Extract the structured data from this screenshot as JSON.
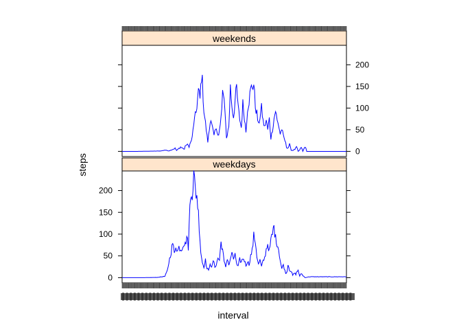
{
  "chart_data": {
    "type": "line",
    "layout": "lattice-stacked-panels",
    "xlabel": "interval",
    "ylabel": "steps",
    "ylim": [
      -12,
      245
    ],
    "y_ticks": [
      0,
      50,
      100,
      150,
      200
    ],
    "x_range": [
      0,
      288
    ],
    "x_ticks_note": "x tick labels are overplotted and illegible",
    "strip_color": "#ffe5cc",
    "line_color": "#0000ff",
    "panels": [
      {
        "name": "weekends",
        "position": "top",
        "y_axis_side": "right",
        "values_anchor": [
          [
            0,
            0
          ],
          [
            20,
            0
          ],
          [
            40,
            0.5
          ],
          [
            50,
            1
          ],
          [
            55,
            3
          ],
          [
            60,
            1
          ],
          [
            64,
            4
          ],
          [
            68,
            7
          ],
          [
            70,
            2
          ],
          [
            75,
            10
          ],
          [
            80,
            5
          ],
          [
            82,
            16
          ],
          [
            86,
            12
          ],
          [
            88,
            20
          ],
          [
            90,
            32
          ],
          [
            92,
            65
          ],
          [
            95,
            90
          ],
          [
            98,
            140
          ],
          [
            100,
            120
          ],
          [
            102,
            178
          ],
          [
            103,
            160
          ],
          [
            105,
            95
          ],
          [
            108,
            50
          ],
          [
            110,
            22
          ],
          [
            112,
            50
          ],
          [
            114,
            80
          ],
          [
            116,
            55
          ],
          [
            118,
            35
          ],
          [
            120,
            50
          ],
          [
            122,
            45
          ],
          [
            124,
            40
          ],
          [
            126,
            60
          ],
          [
            128,
            95
          ],
          [
            129,
            142
          ],
          [
            131,
            110
          ],
          [
            133,
            70
          ],
          [
            134,
            30
          ],
          [
            137,
            58
          ],
          [
            139,
            148
          ],
          [
            141,
            105
          ],
          [
            143,
            80
          ],
          [
            145,
            115
          ],
          [
            147,
            148
          ],
          [
            149,
            100
          ],
          [
            151,
            75
          ],
          [
            153,
            55
          ],
          [
            155,
            110
          ],
          [
            157,
            80
          ],
          [
            159,
            45
          ],
          [
            161,
            100
          ],
          [
            163,
            118
          ],
          [
            165,
            140
          ],
          [
            167,
            152
          ],
          [
            169,
            155
          ],
          [
            171,
            105
          ],
          [
            173,
            88
          ],
          [
            175,
            60
          ],
          [
            177,
            80
          ],
          [
            179,
            100
          ],
          [
            181,
            70
          ],
          [
            183,
            55
          ],
          [
            185,
            72
          ],
          [
            187,
            50
          ],
          [
            189,
            75
          ],
          [
            191,
            30
          ],
          [
            193,
            50
          ],
          [
            195,
            75
          ],
          [
            197,
            95
          ],
          [
            199,
            70
          ],
          [
            201,
            60
          ],
          [
            203,
            40
          ],
          [
            205,
            52
          ],
          [
            207,
            35
          ],
          [
            209,
            25
          ],
          [
            211,
            10
          ],
          [
            213,
            8
          ],
          [
            215,
            15
          ],
          [
            217,
            3
          ],
          [
            219,
            2
          ],
          [
            222,
            5
          ],
          [
            224,
            10
          ],
          [
            226,
            0
          ],
          [
            228,
            3
          ],
          [
            230,
            10
          ],
          [
            232,
            0
          ],
          [
            235,
            12
          ],
          [
            237,
            0
          ],
          [
            240,
            0
          ]
        ]
      },
      {
        "name": "weekdays",
        "position": "bottom",
        "y_axis_side": "left",
        "values_anchor": [
          [
            0,
            0
          ],
          [
            25,
            0
          ],
          [
            45,
            0.5
          ],
          [
            55,
            3
          ],
          [
            58,
            15
          ],
          [
            60,
            35
          ],
          [
            63,
            60
          ],
          [
            65,
            80
          ],
          [
            67,
            55
          ],
          [
            69,
            75
          ],
          [
            71,
            60
          ],
          [
            73,
            70
          ],
          [
            76,
            65
          ],
          [
            79,
            80
          ],
          [
            81,
            75
          ],
          [
            83,
            95
          ],
          [
            85,
            70
          ],
          [
            87,
            160
          ],
          [
            89,
            210
          ],
          [
            90,
            195
          ],
          [
            92,
            235
          ],
          [
            94,
            200
          ],
          [
            96,
            190
          ],
          [
            97,
            170
          ],
          [
            99,
            120
          ],
          [
            101,
            60
          ],
          [
            103,
            35
          ],
          [
            105,
            25
          ],
          [
            107,
            40
          ],
          [
            109,
            20
          ],
          [
            111,
            15
          ],
          [
            113,
            35
          ],
          [
            115,
            20
          ],
          [
            117,
            40
          ],
          [
            119,
            25
          ],
          [
            121,
            30
          ],
          [
            123,
            45
          ],
          [
            125,
            40
          ],
          [
            127,
            82
          ],
          [
            129,
            65
          ],
          [
            131,
            35
          ],
          [
            133,
            25
          ],
          [
            135,
            45
          ],
          [
            137,
            30
          ],
          [
            139,
            40
          ],
          [
            141,
            60
          ],
          [
            143,
            38
          ],
          [
            145,
            58
          ],
          [
            147,
            30
          ],
          [
            149,
            25
          ],
          [
            151,
            42
          ],
          [
            153,
            35
          ],
          [
            155,
            45
          ],
          [
            157,
            40
          ],
          [
            159,
            28
          ],
          [
            161,
            38
          ],
          [
            163,
            30
          ],
          [
            165,
            50
          ],
          [
            167,
            62
          ],
          [
            169,
            95
          ],
          [
            171,
            85
          ],
          [
            173,
            50
          ],
          [
            175,
            30
          ],
          [
            177,
            40
          ],
          [
            179,
            25
          ],
          [
            181,
            38
          ],
          [
            183,
            45
          ],
          [
            185,
            65
          ],
          [
            187,
            78
          ],
          [
            189,
            60
          ],
          [
            191,
            85
          ],
          [
            193,
            100
          ],
          [
            195,
            118
          ],
          [
            197,
            90
          ],
          [
            199,
            80
          ],
          [
            201,
            65
          ],
          [
            203,
            40
          ],
          [
            205,
            20
          ],
          [
            207,
            30
          ],
          [
            209,
            15
          ],
          [
            211,
            10
          ],
          [
            213,
            30
          ],
          [
            215,
            20
          ],
          [
            217,
            15
          ],
          [
            219,
            5
          ],
          [
            221,
            10
          ],
          [
            223,
            8
          ],
          [
            226,
            18
          ],
          [
            228,
            3
          ],
          [
            230,
            10
          ],
          [
            232,
            5
          ],
          [
            235,
            0
          ],
          [
            240,
            2
          ]
        ]
      }
    ]
  }
}
